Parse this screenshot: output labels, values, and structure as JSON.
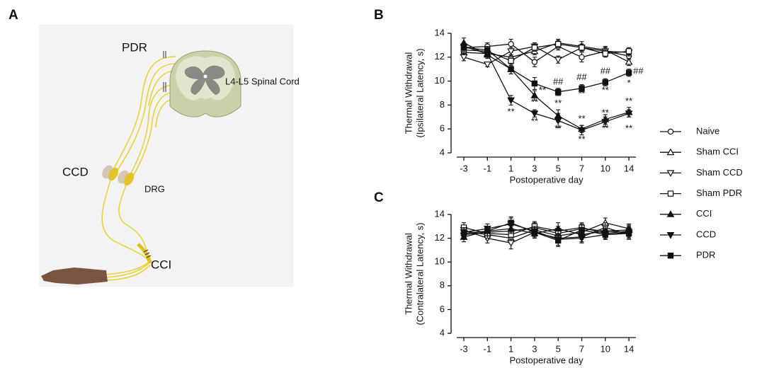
{
  "diagram": {
    "panel": "A",
    "pdr": "PDR",
    "spinal_cord": "L4-L5 Spinal Cord",
    "ccd": "CCD",
    "drg": "DRG",
    "cci": "CCI"
  },
  "chart_data": [
    {
      "type": "line",
      "panel": "B",
      "ylabel": [
        "Thermal Withdrawal",
        "(Ipsilateral Latency, s)"
      ],
      "xlabel": "Postoperative day",
      "categories": [
        "-3",
        "-1",
        "1",
        "3",
        "5",
        "7",
        "10",
        "14"
      ],
      "ylim": [
        4,
        14
      ],
      "yticks": [
        4,
        6,
        8,
        10,
        12,
        14
      ],
      "series": [
        {
          "name": "Naive",
          "color": "#111111",
          "marker": "circle",
          "filled": false,
          "values": [
            12.8,
            12.9,
            13.1,
            11.6,
            12.9,
            12.0,
            12.5,
            12.1
          ],
          "errors": [
            0.4,
            0.3,
            0.4,
            0.4,
            0.3,
            0.4,
            0.3,
            0.3
          ]
        },
        {
          "name": "Sham CCI",
          "color": "#111111",
          "marker": "triangle-up",
          "filled": false,
          "values": [
            12.4,
            12.3,
            12.0,
            12.5,
            13.2,
            12.9,
            12.6,
            11.6
          ],
          "errors": [
            0.3,
            0.3,
            0.4,
            0.3,
            0.3,
            0.4,
            0.3,
            0.3
          ]
        },
        {
          "name": "Sham CCD",
          "color": "#111111",
          "marker": "triangle-down",
          "filled": false,
          "values": [
            12.0,
            11.4,
            12.5,
            12.9,
            11.8,
            12.8,
            12.5,
            12.4
          ],
          "errors": [
            0.3,
            0.2,
            0.3,
            0.3,
            0.3,
            0.3,
            0.3,
            0.3
          ]
        },
        {
          "name": "Sham PDR",
          "color": "#111111",
          "marker": "square",
          "filled": false,
          "values": [
            12.6,
            12.5,
            11.7,
            12.8,
            13.1,
            12.8,
            12.3,
            12.5
          ],
          "errors": [
            0.3,
            0.3,
            0.4,
            0.3,
            0.3,
            0.3,
            0.3,
            0.3
          ]
        },
        {
          "name": "CCI",
          "color": "#111111",
          "marker": "triangle-up",
          "filled": true,
          "values": [
            13.2,
            12.2,
            11.0,
            8.8,
            7.1,
            6.0,
            6.8,
            7.4
          ],
          "errors": [
            0.4,
            0.3,
            0.4,
            0.4,
            0.5,
            0.3,
            0.4,
            0.4
          ]
        },
        {
          "name": "CCD",
          "color": "#111111",
          "marker": "triangle-down",
          "filled": true,
          "values": [
            12.9,
            12.3,
            8.4,
            7.3,
            6.7,
            5.9,
            6.6,
            7.3
          ],
          "errors": [
            0.3,
            0.3,
            0.4,
            0.3,
            0.6,
            0.4,
            0.4,
            0.3
          ]
        },
        {
          "name": "PDR",
          "color": "#111111",
          "marker": "square",
          "filled": true,
          "values": [
            12.8,
            12.6,
            11.0,
            9.8,
            9.1,
            9.4,
            9.9,
            10.7
          ],
          "errors": [
            0.3,
            0.3,
            0.4,
            0.5,
            0.3,
            0.3,
            0.3,
            0.3
          ]
        }
      ],
      "annotations": [
        {
          "text": "**",
          "category": "1",
          "y": 7.4
        },
        {
          "text": "**",
          "category": "3",
          "y": 9.2,
          "side": "right"
        },
        {
          "text": "**",
          "category": "3",
          "y": 8.2
        },
        {
          "text": "**",
          "category": "3",
          "y": 6.6
        },
        {
          "text": "##",
          "category": "5",
          "y": 9.9
        },
        {
          "text": "**",
          "category": "5",
          "y": 8.7
        },
        {
          "text": "**",
          "category": "5",
          "y": 8.1
        },
        {
          "text": "**",
          "category": "5",
          "y": 6.0
        },
        {
          "text": "##",
          "category": "7",
          "y": 10.3
        },
        {
          "text": "**",
          "category": "7",
          "y": 8.9
        },
        {
          "text": "**",
          "category": "7",
          "y": 6.8
        },
        {
          "text": "**",
          "category": "7",
          "y": 5.1
        },
        {
          "text": "##",
          "category": "10",
          "y": 10.8
        },
        {
          "text": "**",
          "category": "10",
          "y": 9.2
        },
        {
          "text": "**",
          "category": "10",
          "y": 7.3
        },
        {
          "text": "**",
          "category": "10",
          "y": 6.0
        },
        {
          "text": "##",
          "category": "14",
          "y": 10.8,
          "side": "right"
        },
        {
          "text": "*",
          "category": "14",
          "y": 9.8
        },
        {
          "text": "**",
          "category": "14",
          "y": 8.3
        },
        {
          "text": "**",
          "category": "14",
          "y": 6.0
        }
      ]
    },
    {
      "type": "line",
      "panel": "C",
      "ylabel": [
        "Thermal Withdrawal",
        "(Contralateral Latency, s)"
      ],
      "xlabel": "Postoperative day",
      "categories": [
        "-3",
        "-1",
        "1",
        "3",
        "5",
        "7",
        "10",
        "14"
      ],
      "ylim": [
        4,
        14
      ],
      "yticks": [
        4,
        6,
        8,
        10,
        12,
        14
      ],
      "series": [
        {
          "color": "#111111",
          "marker": "circle",
          "filled": false,
          "values": [
            12.3,
            12.5,
            12.6,
            12.9,
            12.4,
            12.8,
            12.6,
            12.5
          ],
          "errors": [
            0.4,
            0.4,
            0.4,
            0.4,
            0.4,
            0.4,
            0.4,
            0.4
          ]
        },
        {
          "color": "#111111",
          "marker": "triangle-up",
          "filled": false,
          "values": [
            12.6,
            12.3,
            12.0,
            12.7,
            12.2,
            12.5,
            13.3,
            12.8
          ],
          "errors": [
            0.4,
            0.4,
            0.4,
            0.4,
            0.4,
            0.4,
            0.4,
            0.4
          ]
        },
        {
          "color": "#111111",
          "marker": "triangle-down",
          "filled": false,
          "values": [
            12.7,
            12.0,
            11.6,
            12.5,
            12.0,
            12.1,
            12.9,
            12.3
          ],
          "errors": [
            0.4,
            0.4,
            0.5,
            0.4,
            0.4,
            0.4,
            0.4,
            0.4
          ]
        },
        {
          "color": "#111111",
          "marker": "square",
          "filled": false,
          "values": [
            12.9,
            12.4,
            12.3,
            13.0,
            12.6,
            12.9,
            12.4,
            12.6
          ],
          "errors": [
            0.4,
            0.4,
            0.4,
            0.4,
            0.4,
            0.4,
            0.4,
            0.4
          ]
        },
        {
          "color": "#111111",
          "marker": "triangle-up",
          "filled": true,
          "values": [
            12.1,
            12.6,
            12.8,
            12.4,
            12.8,
            12.3,
            12.6,
            12.7
          ],
          "errors": [
            0.4,
            0.4,
            0.4,
            0.4,
            0.5,
            0.4,
            0.4,
            0.4
          ]
        },
        {
          "color": "#111111",
          "marker": "triangle-down",
          "filled": true,
          "values": [
            12.5,
            12.8,
            13.2,
            12.6,
            11.9,
            12.0,
            12.3,
            12.5
          ],
          "errors": [
            0.4,
            0.4,
            0.5,
            0.4,
            0.5,
            0.4,
            0.4,
            0.4
          ]
        },
        {
          "color": "#111111",
          "marker": "square",
          "filled": true,
          "values": [
            12.4,
            12.6,
            13.3,
            12.5,
            11.8,
            12.7,
            12.3,
            12.4
          ],
          "errors": [
            0.4,
            0.4,
            0.5,
            0.4,
            0.5,
            0.4,
            0.4,
            0.4
          ]
        }
      ]
    }
  ]
}
